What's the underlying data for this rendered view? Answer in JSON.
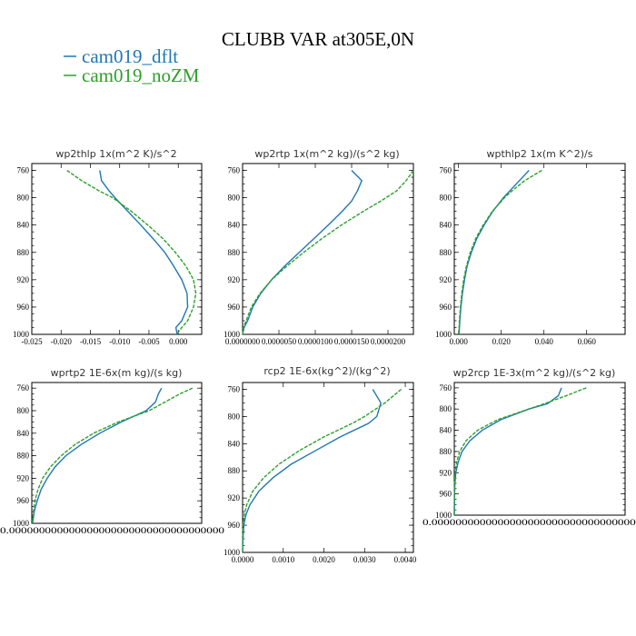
{
  "title": "CLUBB VAR at305E,0N",
  "colors": {
    "dflt": "#1f77b4",
    "noZM": "#2ca02c"
  },
  "legend": [
    {
      "label": "cam019_dflt",
      "color": "#1f77b4",
      "style": "solid"
    },
    {
      "label": "cam019_noZM",
      "color": "#2ca02c",
      "style": "dashed"
    }
  ],
  "chart_data": [
    {
      "type": "line",
      "title": "wp2thlp  1x(m^2 K)/s^2",
      "xlim": [
        -0.025,
        0.004
      ],
      "ylim": [
        1000,
        750
      ],
      "xticks": [
        "-0.025",
        "-0.020",
        "-0.015",
        "-0.010",
        "-0.005",
        "0.000"
      ],
      "xtick_values": [
        -0.025,
        -0.02,
        -0.015,
        -0.01,
        -0.005,
        0.0
      ],
      "yticks": [
        "760",
        "800",
        "840",
        "880",
        "920",
        "960",
        "1000"
      ],
      "ytick_values": [
        760,
        800,
        840,
        880,
        920,
        960,
        1000
      ],
      "y": [
        760,
        775,
        790,
        800,
        820,
        840,
        860,
        880,
        900,
        920,
        940,
        960,
        980,
        990,
        1000
      ],
      "series": [
        {
          "name": "cam019_dflt",
          "values": [
            -0.0134,
            -0.0131,
            -0.0118,
            -0.0108,
            -0.0086,
            -0.0064,
            -0.0043,
            -0.0023,
            -0.0008,
            0.0006,
            0.0015,
            0.0016,
            0.0006,
            -0.0004,
            -0.0002
          ]
        },
        {
          "name": "cam019_noZM",
          "values": [
            -0.019,
            -0.0165,
            -0.0135,
            -0.0112,
            -0.008,
            -0.0052,
            -0.0026,
            -0.0005,
            0.0013,
            0.0026,
            0.003,
            0.0026,
            0.0016,
            0.0006,
            -0.0003
          ]
        }
      ]
    },
    {
      "type": "line",
      "title": "wp2rtp  1x(m^2 kg)/(s^2 kg)",
      "xlim": [
        0,
        2.35e-05
      ],
      "ylim": [
        1000,
        750
      ],
      "xticks": [
        "0.0000000",
        "0.0000050",
        "0.0000100",
        "0.0000150",
        "0.0000200"
      ],
      "xtick_values": [
        0,
        5e-06,
        1e-05,
        1.5e-05,
        2e-05
      ],
      "yticks": [
        "760",
        "800",
        "840",
        "880",
        "920",
        "960",
        "1000"
      ],
      "ytick_values": [
        760,
        800,
        840,
        880,
        920,
        960,
        1000
      ],
      "y": [
        760,
        775,
        790,
        805,
        820,
        840,
        860,
        880,
        900,
        920,
        940,
        960,
        980,
        990,
        1000
      ],
      "series": [
        {
          "name": "cam019_dflt",
          "values": [
            1.5e-05,
            1.64e-05,
            1.58e-05,
            1.5e-05,
            1.37e-05,
            1.18e-05,
            9.8e-06,
            7.8e-06,
            5.8e-06,
            4e-06,
            2.5e-06,
            1.4e-06,
            7e-07,
            2e-07,
            0.0
          ]
        },
        {
          "name": "cam019_noZM",
          "values": [
            2.35e-05,
            2.25e-05,
            2.12e-05,
            1.9e-05,
            1.66e-05,
            1.36e-05,
            1.09e-05,
            8.4e-06,
            6.1e-06,
            4e-06,
            2.4e-06,
            1.2e-06,
            5e-07,
            1e-07,
            0.0
          ]
        }
      ]
    },
    {
      "type": "line",
      "title": "wpthlp2  1x(m K^2)/s",
      "xlim": [
        -0.002,
        0.078
      ],
      "ylim": [
        1000,
        750
      ],
      "xticks": [
        "0.000",
        "0.020",
        "0.040",
        "0.060"
      ],
      "xtick_values": [
        0,
        0.02,
        0.04,
        0.06
      ],
      "yticks": [
        "760",
        "800",
        "840",
        "880",
        "920",
        "960",
        "1000"
      ],
      "ytick_values": [
        760,
        800,
        840,
        880,
        920,
        960,
        1000
      ],
      "y": [
        760,
        775,
        790,
        800,
        820,
        840,
        860,
        880,
        900,
        920,
        940,
        960,
        980,
        1000
      ],
      "series": [
        {
          "name": "cam019_dflt",
          "values": [
            0.033,
            0.0285,
            0.024,
            0.021,
            0.016,
            0.012,
            0.0085,
            0.006,
            0.004,
            0.0028,
            0.0018,
            0.0011,
            0.0006,
            0.0002
          ]
        },
        {
          "name": "cam019_noZM",
          "values": [
            0.039,
            0.031,
            0.025,
            0.0215,
            0.0158,
            0.0115,
            0.008,
            0.0055,
            0.0037,
            0.0024,
            0.0015,
            0.0009,
            0.0004,
            0.0001
          ]
        }
      ]
    },
    {
      "type": "line",
      "title": "wprtp2  1E-6x(m kg)/(s kg)",
      "xlim": [
        0,
        1.1
      ],
      "ylim": [
        1000,
        750
      ],
      "xticks": [
        "0.000000000000000000000000000000000000"
      ],
      "xtick_values": [
        0.0
      ],
      "yticks": [
        "760",
        "800",
        "840",
        "880",
        "920",
        "960",
        "1000"
      ],
      "ytick_values": [
        760,
        800,
        840,
        880,
        920,
        960,
        1000
      ],
      "y": [
        760,
        770,
        785,
        800,
        820,
        840,
        860,
        880,
        900,
        920,
        940,
        960,
        980,
        1000
      ],
      "series": [
        {
          "name": "cam019_dflt",
          "values": [
            0.84,
            0.82,
            0.8,
            0.74,
            0.58,
            0.44,
            0.32,
            0.22,
            0.15,
            0.1,
            0.06,
            0.035,
            0.015,
            0.005
          ]
        },
        {
          "name": "cam019_noZM",
          "values": [
            1.04,
            0.96,
            0.86,
            0.76,
            0.56,
            0.4,
            0.28,
            0.19,
            0.12,
            0.07,
            0.04,
            0.02,
            0.01,
            0.003
          ]
        }
      ]
    },
    {
      "type": "line",
      "title": "rcp2  1E-6x(kg^2)/(kg^2)",
      "xlim": [
        0,
        0.0042
      ],
      "ylim": [
        1000,
        750
      ],
      "xticks": [
        "0.0000",
        "0.0010",
        "0.0020",
        "0.0030",
        "0.0040"
      ],
      "xtick_values": [
        0,
        0.001,
        0.002,
        0.003,
        0.004
      ],
      "yticks": [
        "760",
        "800",
        "840",
        "880",
        "920",
        "960",
        "1000"
      ],
      "ytick_values": [
        760,
        800,
        840,
        880,
        920,
        960,
        1000
      ],
      "y": [
        760,
        780,
        800,
        810,
        830,
        850,
        870,
        890,
        910,
        930,
        945,
        960,
        980,
        1000
      ],
      "series": [
        {
          "name": "cam019_dflt",
          "values": [
            0.0032,
            0.0034,
            0.0033,
            0.0031,
            0.0024,
            0.0018,
            0.0012,
            0.00075,
            0.0004,
            0.00018,
            8e-05,
            3e-05,
            1e-05,
            0.0
          ]
        },
        {
          "name": "cam019_noZM",
          "values": [
            0.0039,
            0.0035,
            0.003,
            0.0027,
            0.002,
            0.0014,
            0.0009,
            0.00052,
            0.00025,
            0.0001,
            4e-05,
            1e-05,
            3e-06,
            0.0
          ]
        }
      ]
    },
    {
      "type": "line",
      "title": "wp2rcp  1E-3x(m^2 kg)/(s^2 kg)",
      "xlim": [
        0,
        1.1
      ],
      "ylim": [
        1000,
        750
      ],
      "xticks": [
        "0.000000000000000000000000000000000000"
      ],
      "xtick_values": [
        0.0
      ],
      "yticks": [
        "760",
        "800",
        "840",
        "880",
        "920",
        "960",
        "1000"
      ],
      "ytick_values": [
        760,
        800,
        840,
        880,
        920,
        960,
        1000
      ],
      "y": [
        760,
        775,
        790,
        800,
        820,
        840,
        860,
        880,
        900,
        920,
        940,
        960,
        980,
        1000
      ],
      "series": [
        {
          "name": "cam019_dflt",
          "values": [
            0.69,
            0.67,
            0.6,
            0.48,
            0.3,
            0.18,
            0.1,
            0.05,
            0.025,
            0.01,
            0.004,
            0.002,
            0.001,
            0.0
          ]
        },
        {
          "name": "cam019_noZM",
          "values": [
            0.85,
            0.72,
            0.58,
            0.48,
            0.28,
            0.15,
            0.075,
            0.035,
            0.015,
            0.006,
            0.002,
            0.001,
            0.0,
            0.0
          ]
        }
      ]
    }
  ]
}
